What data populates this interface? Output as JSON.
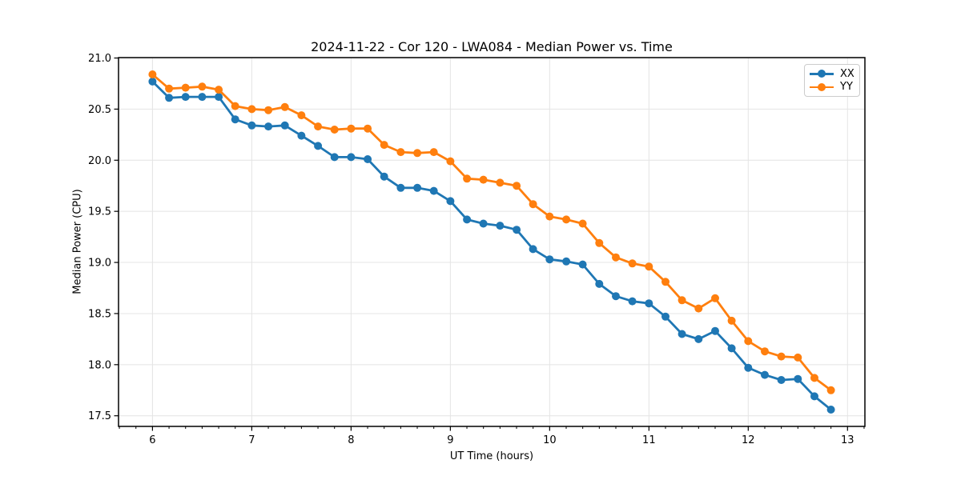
{
  "colors": {
    "background": "#ffffff",
    "grid": "#e4e4e4",
    "axis": "#000000",
    "text": "#000000",
    "series_xx": "#1f77b4",
    "series_yy": "#ff7f0e"
  },
  "chart_data": {
    "type": "line",
    "title": "2024-11-22 - Cor 120 - LWA084 - Median Power vs. Time",
    "xlabel": "UT Time (hours)",
    "ylabel": "Median Power (CPU)",
    "xlim": [
      5.658,
      13.175
    ],
    "ylim": [
      17.396,
      21.004
    ],
    "xticks": [
      6,
      7,
      8,
      9,
      10,
      11,
      12,
      13
    ],
    "xtick_labels": [
      "6",
      "7",
      "8",
      "9",
      "10",
      "11",
      "12",
      "13"
    ],
    "x_minor_step_hours": 0.1666667,
    "yticks": [
      17.5,
      18.0,
      18.5,
      19.0,
      19.5,
      20.0,
      20.5,
      21.0
    ],
    "ytick_labels": [
      "17.5",
      "18.0",
      "18.5",
      "19.0",
      "19.5",
      "20.0",
      "20.5",
      "21.0"
    ],
    "grid": true,
    "legend_position": "upper right",
    "marker": "circle",
    "x": [
      6.0,
      6.167,
      6.333,
      6.5,
      6.667,
      6.833,
      7.0,
      7.167,
      7.333,
      7.5,
      7.667,
      7.833,
      8.0,
      8.167,
      8.333,
      8.5,
      8.667,
      8.833,
      9.0,
      9.167,
      9.333,
      9.5,
      9.667,
      9.833,
      10.0,
      10.167,
      10.333,
      10.5,
      10.667,
      10.833,
      11.0,
      11.167,
      11.333,
      11.5,
      11.667,
      11.833,
      12.0,
      12.167,
      12.333,
      12.5,
      12.667,
      12.833
    ],
    "series": [
      {
        "name": "XX",
        "color": "#1f77b4",
        "values": [
          20.77,
          20.61,
          20.62,
          20.62,
          20.62,
          20.4,
          20.34,
          20.33,
          20.34,
          20.24,
          20.14,
          20.03,
          20.03,
          20.01,
          19.84,
          19.73,
          19.73,
          19.7,
          19.6,
          19.42,
          19.38,
          19.36,
          19.32,
          19.13,
          19.03,
          19.01,
          18.98,
          18.79,
          18.67,
          18.62,
          18.6,
          18.47,
          18.3,
          18.25,
          18.33,
          18.16,
          17.97,
          17.9,
          17.85,
          17.86,
          17.69,
          17.56
        ]
      },
      {
        "name": "YY",
        "color": "#ff7f0e",
        "values": [
          20.84,
          20.7,
          20.71,
          20.72,
          20.69,
          20.53,
          20.5,
          20.49,
          20.52,
          20.44,
          20.33,
          20.3,
          20.31,
          20.31,
          20.15,
          20.08,
          20.07,
          20.08,
          19.99,
          19.82,
          19.81,
          19.78,
          19.75,
          19.57,
          19.45,
          19.42,
          19.38,
          19.19,
          19.05,
          18.99,
          18.96,
          18.81,
          18.63,
          18.55,
          18.65,
          18.43,
          18.23,
          18.13,
          18.08,
          18.07,
          17.87,
          17.75
        ]
      }
    ]
  }
}
